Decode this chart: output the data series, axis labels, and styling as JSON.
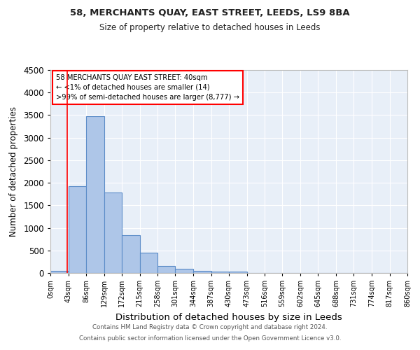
{
  "title1": "58, MERCHANTS QUAY, EAST STREET, LEEDS, LS9 8BA",
  "title2": "Size of property relative to detached houses in Leeds",
  "xlabel": "Distribution of detached houses by size in Leeds",
  "ylabel": "Number of detached properties",
  "bin_labels": [
    "0sqm",
    "43sqm",
    "86sqm",
    "129sqm",
    "172sqm",
    "215sqm",
    "258sqm",
    "301sqm",
    "344sqm",
    "387sqm",
    "430sqm",
    "473sqm",
    "516sqm",
    "559sqm",
    "602sqm",
    "645sqm",
    "688sqm",
    "731sqm",
    "774sqm",
    "817sqm",
    "860sqm"
  ],
  "bin_edges": [
    0,
    43,
    86,
    129,
    172,
    215,
    258,
    301,
    344,
    387,
    430,
    473,
    516,
    559,
    602,
    645,
    688,
    731,
    774,
    817,
    860
  ],
  "bar_heights": [
    50,
    1920,
    3470,
    1780,
    840,
    450,
    155,
    90,
    50,
    35,
    25,
    5,
    0,
    0,
    0,
    0,
    0,
    0,
    0,
    0
  ],
  "bar_color": "#aec6e8",
  "bar_edge_color": "#5b8cc8",
  "background_color": "#e8eff8",
  "grid_color": "#ffffff",
  "red_line_x": 40,
  "ylim": [
    0,
    4500
  ],
  "yticks": [
    0,
    500,
    1000,
    1500,
    2000,
    2500,
    3000,
    3500,
    4000,
    4500
  ],
  "annotation_box_text": "58 MERCHANTS QUAY EAST STREET: 40sqm\n← <1% of detached houses are smaller (14)\n>99% of semi-detached houses are larger (8,777) →",
  "footnote1": "Contains HM Land Registry data © Crown copyright and database right 2024.",
  "footnote2": "Contains public sector information licensed under the Open Government Licence v3.0."
}
